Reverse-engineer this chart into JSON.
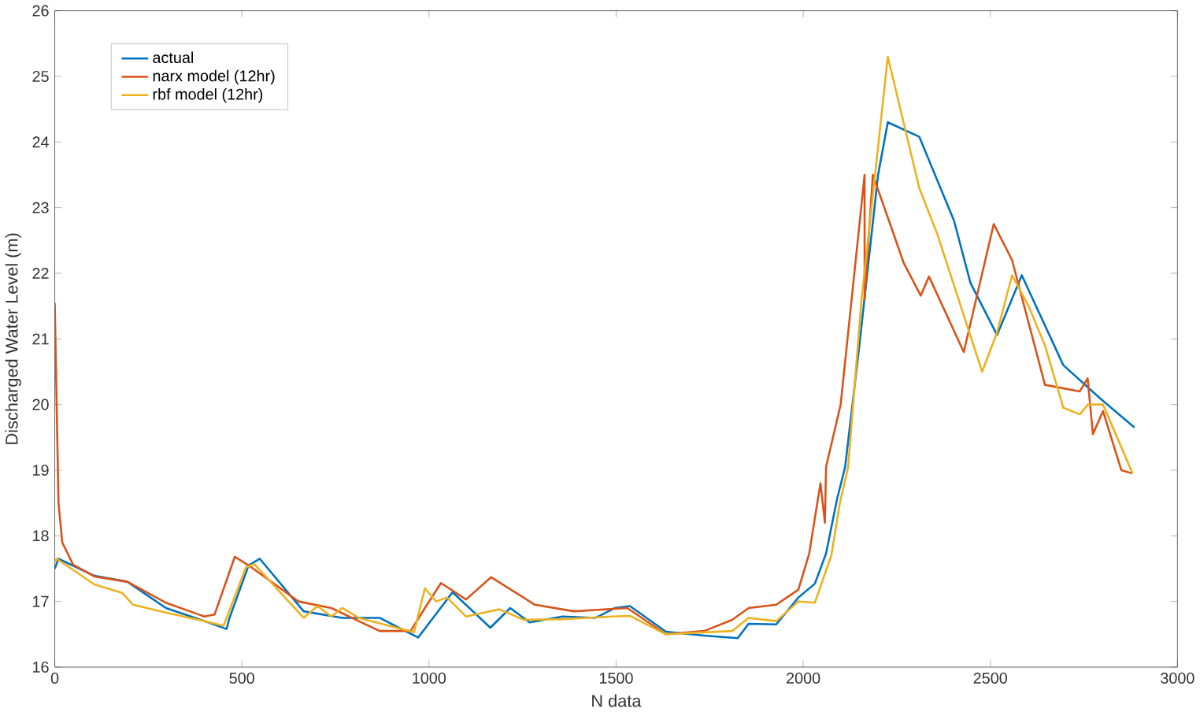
{
  "chart_data": {
    "type": "line",
    "xlabel": "N data",
    "ylabel": "Discharged Water Level (m)",
    "xlim": [
      0,
      3000
    ],
    "ylim": [
      16,
      26
    ],
    "xticks": [
      0,
      500,
      1000,
      1500,
      2000,
      2500,
      3000
    ],
    "yticks": [
      16,
      17,
      18,
      19,
      20,
      21,
      22,
      23,
      24,
      25,
      26
    ],
    "grid": false,
    "legend": "top left",
    "marker": "none",
    "line_style": "solid",
    "series": [
      {
        "name": "actual",
        "color": "#0072bd",
        "x": [
          0,
          10,
          106,
          194,
          297,
          400,
          459,
          467,
          518,
          548,
          665,
          768,
          868,
          971,
          1063,
          1164,
          1217,
          1269,
          1357,
          1445,
          1497,
          1537,
          1633,
          1736,
          1825,
          1854,
          1928,
          1987,
          2031,
          2061,
          2090,
          2112,
          2150,
          2200,
          2226,
          2310,
          2403,
          2447,
          2518,
          2584,
          2695,
          2792,
          2885
        ],
        "values": [
          17.5,
          17.65,
          17.39,
          17.3,
          16.9,
          16.7,
          16.58,
          16.75,
          17.55,
          17.65,
          16.85,
          16.75,
          16.75,
          16.45,
          17.14,
          16.6,
          16.9,
          16.68,
          16.77,
          16.75,
          16.9,
          16.93,
          16.54,
          16.48,
          16.44,
          16.66,
          16.65,
          17.06,
          17.27,
          17.73,
          18.55,
          19.05,
          20.9,
          23.5,
          24.3,
          24.08,
          22.8,
          21.85,
          21.06,
          21.97,
          20.6,
          20.1,
          19.65
        ]
      },
      {
        "name": "narx model (12hr)",
        "color": "#d95319",
        "x": [
          0,
          5,
          10,
          20,
          49,
          106,
          194,
          297,
          400,
          427,
          481,
          518,
          651,
          739,
          868,
          951,
          989,
          1032,
          1099,
          1166,
          1283,
          1387,
          1530,
          1633,
          1736,
          1810,
          1854,
          1928,
          1987,
          2016,
          2046,
          2058,
          2061,
          2100,
          2164,
          2164,
          2186,
          2269,
          2314,
          2336,
          2429,
          2509,
          2558,
          2646,
          2739,
          2760,
          2774,
          2801,
          2850,
          2880
        ],
        "values": [
          21.55,
          20.0,
          18.5,
          17.9,
          17.56,
          17.38,
          17.3,
          16.98,
          16.77,
          16.8,
          17.68,
          17.55,
          17.0,
          16.9,
          16.55,
          16.55,
          16.9,
          17.28,
          17.03,
          17.37,
          16.95,
          16.85,
          16.9,
          16.5,
          16.55,
          16.72,
          16.9,
          16.95,
          17.18,
          17.73,
          18.8,
          18.2,
          19.05,
          20.0,
          23.5,
          21.6,
          23.5,
          22.15,
          21.66,
          21.95,
          20.8,
          22.75,
          22.2,
          20.3,
          20.2,
          20.4,
          19.55,
          19.9,
          19.0,
          18.95
        ]
      },
      {
        "name": "rbf model (12hr)",
        "color": "#edb120",
        "x": [
          0,
          5,
          106,
          180,
          209,
          297,
          400,
          451,
          511,
          533,
          665,
          702,
          739,
          768,
          812,
          960,
          989,
          1019,
          1048,
          1099,
          1188,
          1254,
          1357,
          1490,
          1537,
          1633,
          1810,
          1854,
          1928,
          1987,
          2031,
          2075,
          2098,
          2120,
          2155,
          2226,
          2310,
          2358,
          2478,
          2518,
          2558,
          2602,
          2646,
          2695,
          2739,
          2761,
          2801,
          2880
        ],
        "values": [
          17.6,
          17.65,
          17.26,
          17.13,
          16.95,
          16.83,
          16.7,
          16.63,
          17.52,
          17.57,
          16.75,
          16.93,
          16.77,
          16.9,
          16.75,
          16.53,
          17.2,
          17.0,
          17.06,
          16.77,
          16.88,
          16.72,
          16.73,
          16.77,
          16.78,
          16.5,
          16.55,
          16.75,
          16.7,
          17.0,
          16.98,
          17.7,
          18.5,
          19.05,
          21.55,
          25.3,
          23.3,
          22.6,
          20.5,
          21.1,
          21.97,
          21.5,
          20.9,
          19.95,
          19.85,
          20.0,
          20.0,
          18.95
        ]
      }
    ]
  }
}
